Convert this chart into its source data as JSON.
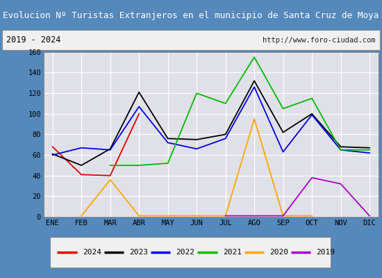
{
  "title": "Evolucion Nº Turistas Extranjeros en el municipio de Santa Cruz de Moya",
  "subtitle_left": "2019 - 2024",
  "subtitle_right": "http://www.foro-ciudad.com",
  "months": [
    "ENE",
    "FEB",
    "MAR",
    "ABR",
    "MAY",
    "JUN",
    "JUL",
    "AGO",
    "SEP",
    "OCT",
    "NOV",
    "DIC"
  ],
  "series_order": [
    "2024",
    "2023",
    "2022",
    "2021",
    "2020",
    "2019"
  ],
  "series": {
    "2024": {
      "color": "#dd0000",
      "data": [
        68,
        41,
        40,
        100,
        null,
        null,
        null,
        null,
        null,
        null,
        null,
        null
      ]
    },
    "2023": {
      "color": "#000000",
      "data": [
        61,
        50,
        66,
        121,
        76,
        75,
        80,
        132,
        82,
        100,
        68,
        67
      ]
    },
    "2022": {
      "color": "#0000ee",
      "data": [
        60,
        67,
        65,
        107,
        72,
        66,
        76,
        126,
        63,
        99,
        65,
        62
      ]
    },
    "2021": {
      "color": "#00bb00",
      "data": [
        null,
        null,
        50,
        50,
        52,
        120,
        110,
        155,
        105,
        115,
        65,
        65
      ]
    },
    "2020": {
      "color": "#ffa500",
      "data": [
        null,
        1,
        36,
        1,
        null,
        null,
        1,
        95,
        1,
        1,
        null,
        null
      ]
    },
    "2019": {
      "color": "#aa00cc",
      "data": [
        null,
        null,
        null,
        null,
        null,
        null,
        1,
        1,
        1,
        38,
        32,
        1
      ]
    }
  },
  "ylim": [
    0,
    160
  ],
  "yticks": [
    0,
    20,
    40,
    60,
    80,
    100,
    120,
    140,
    160
  ],
  "title_bg_color": "#4488cc",
  "title_text_color": "#ffffff",
  "plot_bg_color": "#e0e0e8",
  "header_bg_color": "#f0f0f0",
  "legend_bg_color": "#f0f0f0",
  "grid_color": "#ffffff",
  "outer_border_color": "#5588bb",
  "inner_border_color": "#888888"
}
